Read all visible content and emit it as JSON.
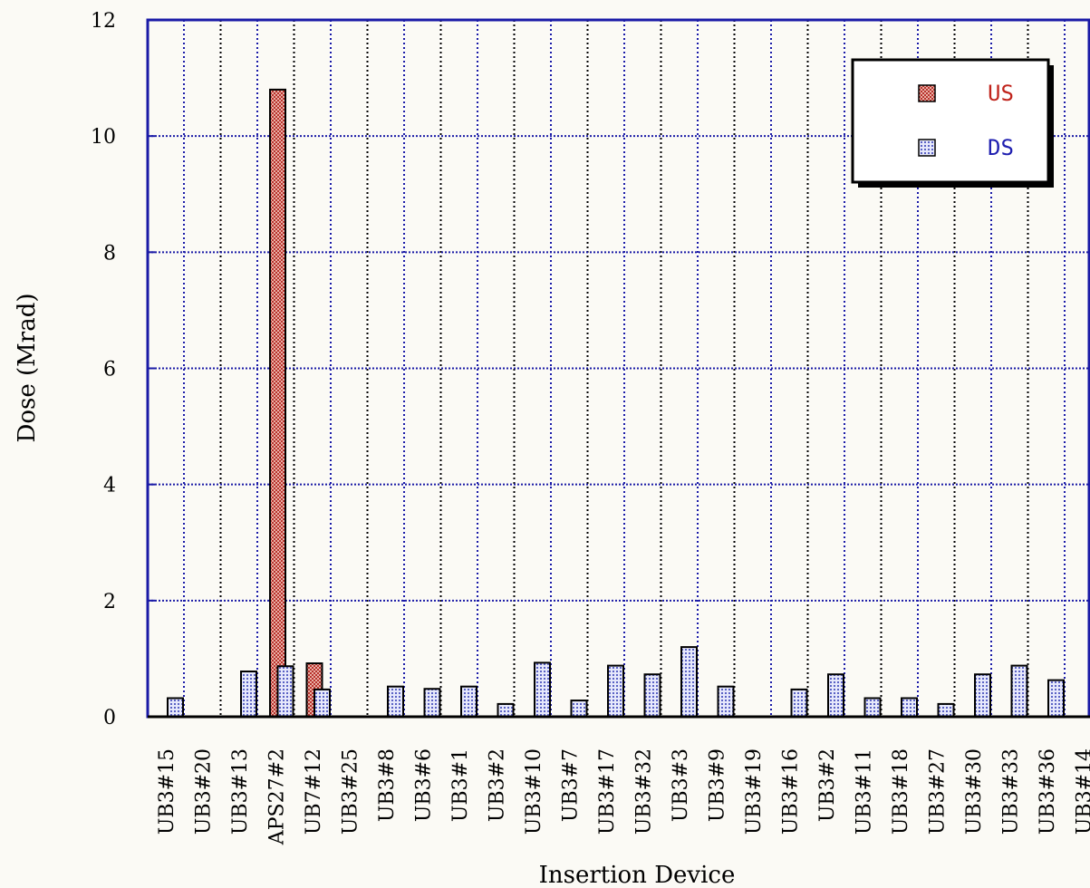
{
  "chart_data": {
    "type": "bar",
    "xlabel": "Insertion Device",
    "ylabel": "Dose (Mrad)",
    "ylim": [
      0,
      12
    ],
    "yticks": [
      0,
      2,
      4,
      6,
      8,
      10,
      12
    ],
    "grid": true,
    "legend_position": "top-right",
    "colors": {
      "US": "#c8504a",
      "DS": "#7a82d4",
      "grid": "#1a1aa6",
      "vgrid": "#000000"
    },
    "categories": [
      "UB3#15",
      "UB3#20",
      "UB3#13",
      "APS27#2",
      "UB7#12",
      "UB3#25",
      "UB3#8",
      "UB3#6",
      "UB3#1",
      "UB3#2",
      "UB3#10",
      "UB3#7",
      "UB3#17",
      "UB3#32",
      "UB3#3",
      "UB3#9",
      "UB3#19",
      "UB3#16",
      "UB3#2",
      "UB3#11",
      "UB3#18",
      "UB3#27",
      "UB3#30",
      "UB3#33",
      "UB3#36",
      "UB3#14"
    ],
    "series": [
      {
        "name": "US",
        "values": [
          0,
          0,
          0,
          10.8,
          0.92,
          0,
          0,
          0,
          0,
          0,
          0,
          0,
          0,
          0,
          0,
          0,
          0,
          0,
          0,
          0,
          0,
          0,
          0,
          0,
          0,
          0
        ]
      },
      {
        "name": "DS",
        "values": [
          0.32,
          0,
          0.78,
          0.87,
          0.47,
          0,
          0.52,
          0.48,
          0.52,
          0.22,
          0.93,
          0.28,
          0.88,
          0.73,
          1.2,
          0.52,
          0,
          0.47,
          0.73,
          0.32,
          0.32,
          0.22,
          0.73,
          0.88,
          0.63,
          0
        ]
      }
    ]
  }
}
